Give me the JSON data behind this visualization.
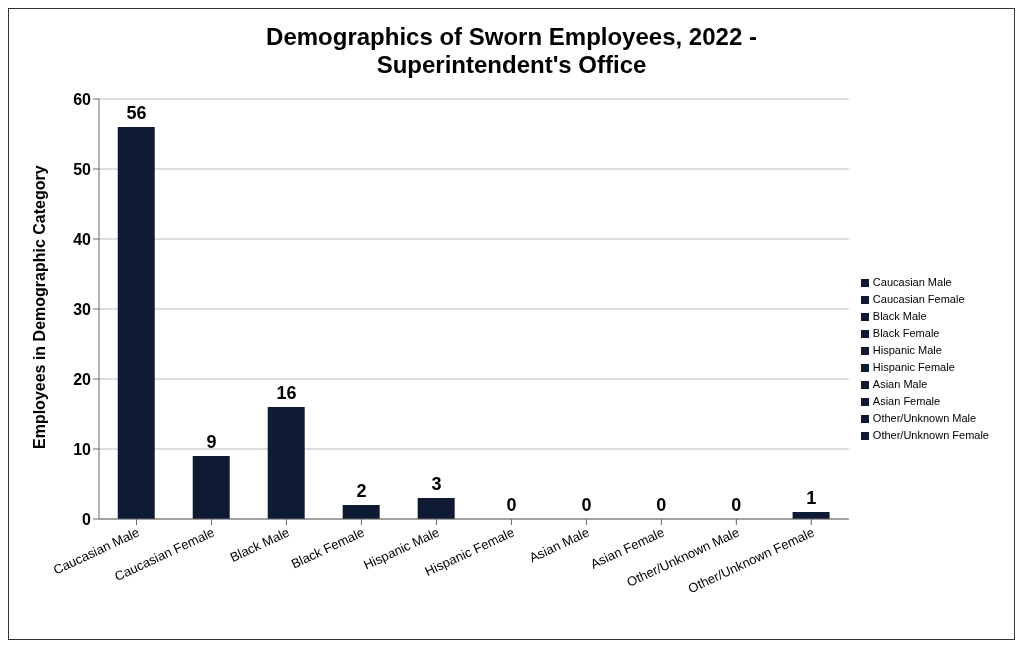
{
  "chart_data": {
    "type": "bar",
    "title": "Demographics of Sworn Employees, 2022 - Superintendent's Office",
    "ylabel": "Employees in Demographic Category",
    "categories": [
      "Caucasian Male",
      "Caucasian Female",
      "Black Male",
      "Black Female",
      "Hispanic Male",
      "Hispanic Female",
      "Asian Male",
      "Asian Female",
      "Other/Unknown Male",
      "Other/Unknown Female"
    ],
    "stacked": true,
    "series": [
      {
        "name": "Caucasian Male",
        "color": "#0f1a33",
        "values": [
          56,
          null,
          null,
          null,
          null,
          null,
          null,
          null,
          null,
          null
        ]
      },
      {
        "name": "Caucasian Female",
        "color": "#0f1a33",
        "values": [
          null,
          9,
          null,
          null,
          null,
          null,
          null,
          null,
          null,
          null
        ]
      },
      {
        "name": "Black Male",
        "color": "#0f1a33",
        "values": [
          null,
          null,
          16,
          null,
          null,
          null,
          null,
          null,
          null,
          null
        ]
      },
      {
        "name": "Black Female",
        "color": "#0f1a33",
        "values": [
          null,
          null,
          null,
          2,
          null,
          null,
          null,
          null,
          null,
          null
        ]
      },
      {
        "name": "Hispanic Male",
        "color": "#0f1a33",
        "values": [
          null,
          null,
          null,
          null,
          3,
          null,
          null,
          null,
          null,
          null
        ]
      },
      {
        "name": "Hispanic Female",
        "color": "#0f1a33",
        "values": [
          null,
          null,
          null,
          null,
          null,
          0,
          null,
          null,
          null,
          null
        ]
      },
      {
        "name": "Asian Male",
        "color": "#0f1a33",
        "values": [
          null,
          null,
          null,
          null,
          null,
          null,
          0,
          null,
          null,
          null
        ]
      },
      {
        "name": "Asian Female",
        "color": "#0f1a33",
        "values": [
          null,
          null,
          null,
          null,
          null,
          null,
          null,
          0,
          null,
          null
        ]
      },
      {
        "name": "Other/Unknown Male",
        "color": "#0f1a33",
        "values": [
          null,
          null,
          null,
          null,
          null,
          null,
          null,
          null,
          0,
          null
        ]
      },
      {
        "name": "Other/Unknown Female",
        "color": "#0f1a33",
        "values": [
          null,
          null,
          null,
          null,
          null,
          null,
          null,
          null,
          null,
          1
        ]
      }
    ],
    "ylim": [
      0,
      60
    ],
    "yticks": [
      0,
      10,
      20,
      30,
      40,
      50,
      60
    ],
    "grid": "y",
    "legend": "right",
    "data_labels": true
  }
}
